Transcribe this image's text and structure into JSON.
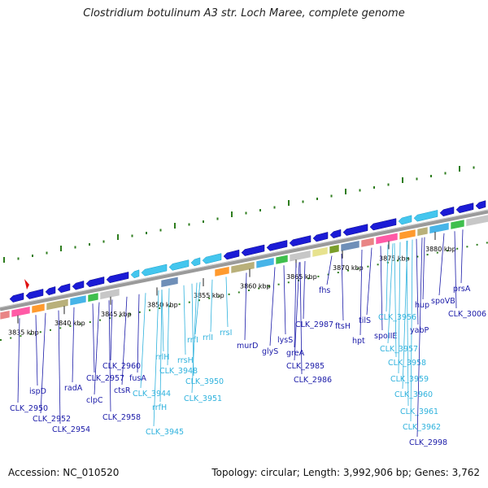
{
  "title": "Clostridium botulinum A3 str. Loch Maree, complete genome",
  "footer": {
    "accession": "Accession: NC_010520",
    "topology": "Topology: circular; Length: 3,992,906 bp; Genes: 3,762"
  },
  "colors": {
    "gene_blue": "#1b1bd6",
    "rna_cyan": "#44c6ee",
    "label_blue": "#1a1aa8",
    "label_cyan": "#2fb2dd",
    "tick_green": "#2e7d1e",
    "backbone_gray": "#9a9a9a",
    "marker_red": "#e01010"
  },
  "kbp_ticks": [
    {
      "text": "3835 kbp"
    },
    {
      "text": "3840 kbp"
    },
    {
      "text": "3845 kbp"
    },
    {
      "text": "3850 kbp"
    },
    {
      "text": "3855 kbp"
    },
    {
      "text": "3860 kbp"
    },
    {
      "text": "3865 kbp"
    },
    {
      "text": "3870 kbp"
    },
    {
      "text": "3875 kbp"
    },
    {
      "text": "3880 kbp"
    }
  ],
  "gene_labels": [
    {
      "text": "ispD",
      "kind": "gene"
    },
    {
      "text": "CLK_2950",
      "kind": "gene"
    },
    {
      "text": "CLK_2952",
      "kind": "gene"
    },
    {
      "text": "CLK_2954",
      "kind": "gene"
    },
    {
      "text": "radA",
      "kind": "gene"
    },
    {
      "text": "clpC",
      "kind": "gene"
    },
    {
      "text": "CLK_2957",
      "kind": "gene"
    },
    {
      "text": "CLK_2960",
      "kind": "gene"
    },
    {
      "text": "ctsR",
      "kind": "gene"
    },
    {
      "text": "CLK_2958",
      "kind": "gene"
    },
    {
      "text": "fusA",
      "kind": "gene"
    },
    {
      "text": "CLK_3944",
      "kind": "rna"
    },
    {
      "text": "rrlH",
      "kind": "rna"
    },
    {
      "text": "rrfH",
      "kind": "rna"
    },
    {
      "text": "CLK_3945",
      "kind": "rna"
    },
    {
      "text": "rrsH",
      "kind": "rna"
    },
    {
      "text": "CLK_3948",
      "kind": "rna"
    },
    {
      "text": "rrfI",
      "kind": "rna"
    },
    {
      "text": "CLK_3950",
      "kind": "rna"
    },
    {
      "text": "rrlI",
      "kind": "rna"
    },
    {
      "text": "CLK_3951",
      "kind": "rna"
    },
    {
      "text": "rrsI",
      "kind": "rna"
    },
    {
      "text": "murD",
      "kind": "gene"
    },
    {
      "text": "glyS",
      "kind": "gene"
    },
    {
      "text": "lysS",
      "kind": "gene"
    },
    {
      "text": "greA",
      "kind": "gene"
    },
    {
      "text": "CLK_2985",
      "kind": "gene"
    },
    {
      "text": "CLK_2986",
      "kind": "gene"
    },
    {
      "text": "CLK_2987",
      "kind": "gene"
    },
    {
      "text": "fhs",
      "kind": "gene"
    },
    {
      "text": "ftsH",
      "kind": "gene"
    },
    {
      "text": "hpt",
      "kind": "gene"
    },
    {
      "text": "tilS",
      "kind": "gene"
    },
    {
      "text": "spoIIE",
      "kind": "gene"
    },
    {
      "text": "CLK_3956",
      "kind": "rna"
    },
    {
      "text": "CLK_3957",
      "kind": "rna"
    },
    {
      "text": "CLK_3958",
      "kind": "rna"
    },
    {
      "text": "CLK_3959",
      "kind": "rna"
    },
    {
      "text": "CLK_3960",
      "kind": "rna"
    },
    {
      "text": "CLK_3961",
      "kind": "rna"
    },
    {
      "text": "CLK_3962",
      "kind": "rna"
    },
    {
      "text": "CLK_2998",
      "kind": "gene"
    },
    {
      "text": "yabP",
      "kind": "gene"
    },
    {
      "text": "hup",
      "kind": "gene"
    },
    {
      "text": "spoVB",
      "kind": "gene"
    },
    {
      "text": "CLK_3006",
      "kind": "gene"
    },
    {
      "text": "prsA",
      "kind": "gene"
    }
  ]
}
